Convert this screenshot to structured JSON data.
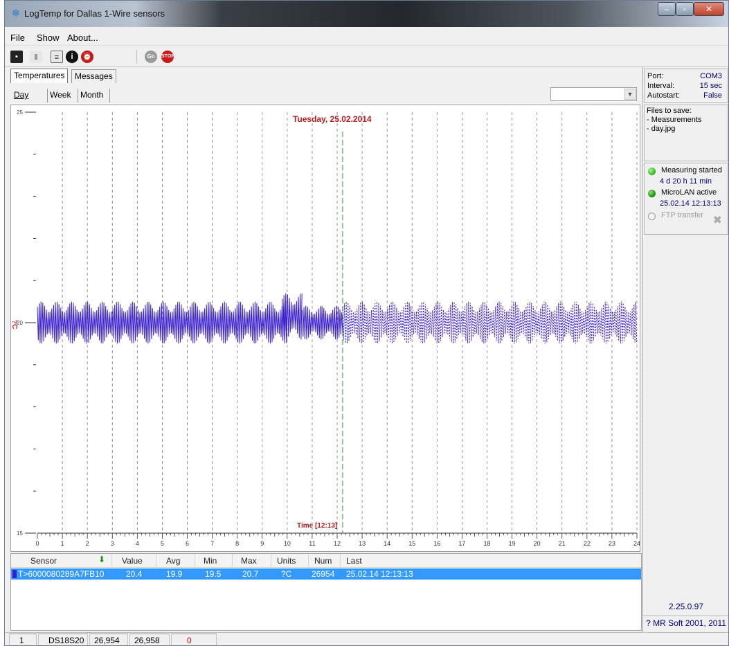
{
  "window": {
    "title": "LogTemp for Dallas 1-Wire sensors",
    "buttons": {
      "minimize": "–",
      "maximize": "▫",
      "close": "✕"
    }
  },
  "menu": [
    "File",
    "Show",
    "About..."
  ],
  "toolbar": {
    "icons": [
      "save-icon",
      "delete-icon",
      "properties-icon",
      "info-icon",
      "alarm-icon",
      "go-icon",
      "stop-icon"
    ],
    "go_label": "Go",
    "stop_label": "STOP"
  },
  "tabs": {
    "main": [
      "Temperatures",
      "Messages"
    ],
    "range": [
      "Day",
      "Week",
      "Month"
    ],
    "selected_main": "Temperatures",
    "selected_range": "Day"
  },
  "sensor_select": {
    "value": ""
  },
  "chart_data": {
    "type": "line",
    "title": "Tuesday, 25.02.2014",
    "xlabel": "Time",
    "current_time_label": "[12:13]",
    "ylabel": "?C",
    "xlim": [
      0,
      24
    ],
    "ylim": [
      15,
      25
    ],
    "x_ticks": [
      0,
      1,
      2,
      3,
      4,
      5,
      6,
      7,
      8,
      9,
      10,
      11,
      12,
      13,
      14,
      15,
      16,
      17,
      18,
      19,
      20,
      21,
      22,
      23,
      24
    ],
    "y_ticks": [
      15,
      20,
      25
    ],
    "current_time": 12.22,
    "grid": "vertical-dashed",
    "series": [
      {
        "color": "#3a1fd0",
        "segments": [
          {
            "x_start": 0.0,
            "x_end": 10.0,
            "min": 19.5,
            "max": 20.5,
            "style": "solid"
          },
          {
            "x_start": 9.8,
            "x_end": 10.6,
            "min": 19.6,
            "max": 20.7,
            "style": "solid"
          },
          {
            "x_start": 10.6,
            "x_end": 12.22,
            "min": 19.6,
            "max": 20.4,
            "style": "solid"
          },
          {
            "x_start": 12.22,
            "x_end": 24.0,
            "min": 19.5,
            "max": 20.5,
            "style": "dashed"
          }
        ]
      }
    ]
  },
  "right_panel": {
    "port_label": "Port:",
    "port_value": "COM3",
    "interval_label": "Interval:",
    "interval_value": "15 sec",
    "autostart_label": "Autostart:",
    "autostart_value": "False",
    "files_title": "Files to save:",
    "files": [
      "- Measurements",
      "- day.jpg"
    ],
    "measuring_label": "Measuring started",
    "measuring_sub": "4 d 20 h 11 min",
    "microlan_label": "MicroLAN active",
    "microlan_sub": "25.02.14 12:13:13",
    "ftp_label": "FTP transfer",
    "version": "2.25.0.97",
    "copyright": "? MR Soft 2001, 2011",
    "led_colors": {
      "measuring": "#35c022",
      "microlan": "#1d9a14",
      "ftp": "#dcdcdc"
    }
  },
  "table": {
    "columns": [
      "Sensor",
      "Value",
      "Avg",
      "Min",
      "Max",
      "Units",
      "Num",
      "Last"
    ],
    "rows": [
      {
        "sensor": "T>6000080289A7FB10",
        "value": "20.4",
        "avg": "19.9",
        "min": "19.5",
        "max": "20.7",
        "units": "?C",
        "num": "26954",
        "last": "25.02.14 12:13:13"
      }
    ]
  },
  "statusbar": [
    "1",
    "DS18S20",
    "26,954",
    "26,958",
    "0"
  ]
}
